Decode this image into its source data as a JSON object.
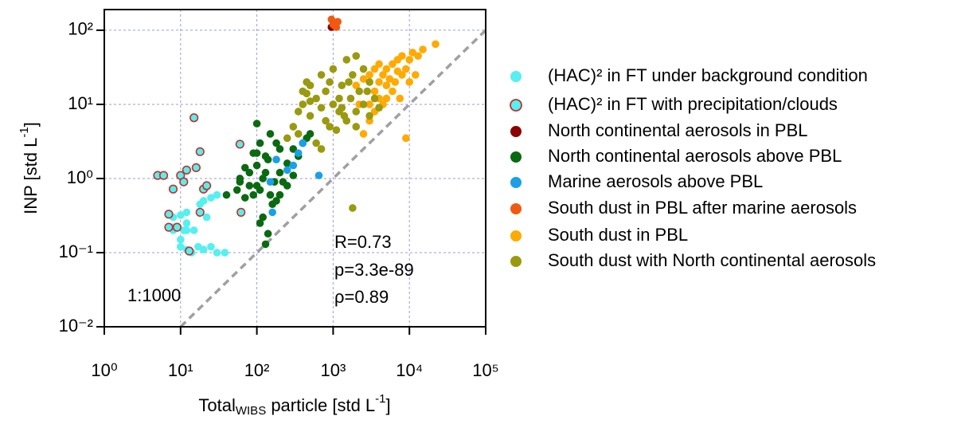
{
  "chart_data": {
    "type": "scatter",
    "xlabel": [
      "Total",
      "WIBS",
      " particle [std L",
      "-1",
      "]"
    ],
    "ylabel": [
      "INP [std L",
      "-1",
      "]"
    ],
    "log_x": true,
    "log_y": true,
    "grid": true,
    "legend": "right",
    "xlim": [
      1,
      100000
    ],
    "ylim": [
      0.01,
      190
    ],
    "xticks": [
      {
        "value": 1,
        "label": "10⁰"
      },
      {
        "value": 10,
        "label": "10¹"
      },
      {
        "value": 100,
        "label": "10²"
      },
      {
        "value": 1000,
        "label": "10³"
      },
      {
        "value": 10000,
        "label": "10⁴"
      },
      {
        "value": 100000,
        "label": "10⁵"
      }
    ],
    "yticks": [
      {
        "value": 0.01,
        "label": "10⁻²"
      },
      {
        "value": 0.1,
        "label": "10⁻¹"
      },
      {
        "value": 1,
        "label": "10⁰"
      },
      {
        "value": 10,
        "label": "10¹"
      },
      {
        "value": 100,
        "label": "10²"
      }
    ],
    "reference_line": {
      "label": "1:1000",
      "ratio": 0.001,
      "color": "#a0a0a0"
    },
    "annotations": [
      "R=0.73",
      "p=3.3e-89",
      "ρ=0.89"
    ],
    "series": [
      {
        "name": "(HAC)² in FT under background condition",
        "color": "#55f0f0",
        "x": [
          10,
          12,
          14,
          17,
          20,
          25,
          30,
          38,
          8,
          9,
          11,
          12,
          8,
          10,
          12,
          18,
          20,
          25,
          30,
          12,
          15,
          8,
          10,
          22
        ],
        "y": [
          0.12,
          0.11,
          0.1,
          0.12,
          0.11,
          0.12,
          0.1,
          0.1,
          0.2,
          0.22,
          0.2,
          0.2,
          0.3,
          0.32,
          0.35,
          0.45,
          0.5,
          0.55,
          0.6,
          0.25,
          0.2,
          0.22,
          0.15,
          0.3
        ]
      },
      {
        "name": "(HAC)² in FT with precipitation/clouds",
        "color": "#55f0f0",
        "edgecolor": "#c0302a",
        "x": [
          5,
          6,
          8,
          10,
          11,
          12,
          16,
          18,
          15,
          20,
          22,
          7,
          7,
          9,
          18,
          60,
          62,
          13
        ],
        "y": [
          1.1,
          1.1,
          0.72,
          1.1,
          0.9,
          1.3,
          1.4,
          2.3,
          6.6,
          0.72,
          0.8,
          0.33,
          0.22,
          0.22,
          0.35,
          2.9,
          0.35,
          0.105
        ]
      },
      {
        "name": "North continental aerosols in PBL",
        "color": "#8b0000",
        "x": [
          950,
          1050
        ],
        "y": [
          110,
          125
        ]
      },
      {
        "name": "North continental aerosols above PBL",
        "color": "#0a6a10",
        "x": [
          40,
          55,
          60,
          70,
          80,
          90,
          100,
          100,
          110,
          120,
          130,
          140,
          150,
          160,
          180,
          120,
          130,
          140,
          110,
          90,
          200,
          200,
          250,
          300,
          350,
          400,
          450,
          500,
          180,
          150,
          100,
          250,
          80,
          70,
          60,
          170,
          220,
          300,
          130,
          100,
          200,
          110
        ],
        "y": [
          0.6,
          0.7,
          1,
          1.4,
          1.2,
          2.2,
          1.5,
          0.8,
          3,
          1,
          2,
          1.8,
          0.6,
          0.45,
          0.5,
          0.3,
          0.13,
          0.18,
          0.25,
          0.6,
          1.2,
          2.5,
          1.6,
          1.1,
          2,
          3,
          3.5,
          4,
          3,
          4,
          5.5,
          0.8,
          0.8,
          0.55,
          0.9,
          0.9,
          0.9,
          2.5,
          1.2,
          2.2,
          0.6,
          0.7
        ]
      },
      {
        "name": "Marine aerosols above PBL",
        "color": "#1aa0e8",
        "x": [
          150,
          180,
          250,
          350,
          650,
          160,
          400,
          300
        ],
        "y": [
          0.9,
          1.8,
          1.3,
          2.2,
          1.1,
          0.35,
          3,
          1.5
        ]
      },
      {
        "name": "South dust in PBL after marine aerosols",
        "color": "#f05a10",
        "x": [
          950,
          1000,
          1100,
          1150,
          1050
        ],
        "y": [
          140,
          120,
          110,
          130,
          115
        ]
      },
      {
        "name": "South dust in PBL",
        "color": "#ffaa00",
        "x": [
          2500,
          3000,
          3000,
          3500,
          3500,
          4000,
          4000,
          4500,
          4500,
          5000,
          5000,
          5500,
          6000,
          6000,
          7000,
          7000,
          8000,
          8000,
          9000,
          10000,
          11000,
          13000,
          15000,
          22000,
          2000,
          2500,
          3500,
          4000,
          9000,
          12000,
          5000,
          6500,
          3000,
          2200,
          7500,
          10000
        ],
        "y": [
          4,
          6,
          10,
          8,
          15,
          12,
          20,
          10,
          25,
          18,
          30,
          22,
          15,
          35,
          28,
          40,
          25,
          45,
          30,
          40,
          50,
          45,
          55,
          65,
          18,
          22,
          30,
          35,
          3.5,
          25,
          12,
          20,
          25,
          10,
          12,
          20
        ]
      },
      {
        "name": "South dust with North continental aerosols",
        "color": "#9a9a10",
        "x": [
          250,
          300,
          350,
          400,
          400,
          450,
          500,
          500,
          600,
          700,
          700,
          800,
          800,
          900,
          1000,
          1000,
          1100,
          1200,
          1300,
          1500,
          1500,
          1700,
          1800,
          2000,
          2000,
          2200,
          2500,
          2500,
          3000,
          3000,
          3500,
          4000,
          1800,
          600,
          700,
          900,
          1200,
          1400,
          500,
          350,
          2000,
          450,
          1600,
          1300,
          2800
        ],
        "y": [
          3.5,
          5,
          8,
          10,
          15,
          20,
          7,
          18,
          12,
          9,
          25,
          6,
          15,
          20,
          10,
          30,
          4.5,
          8,
          18,
          40,
          6,
          12,
          25,
          8,
          45,
          15,
          10,
          30,
          7,
          20,
          12,
          9,
          0.4,
          3,
          2.5,
          5,
          12,
          7,
          11,
          4,
          5,
          14,
          20,
          9,
          15
        ]
      }
    ]
  }
}
